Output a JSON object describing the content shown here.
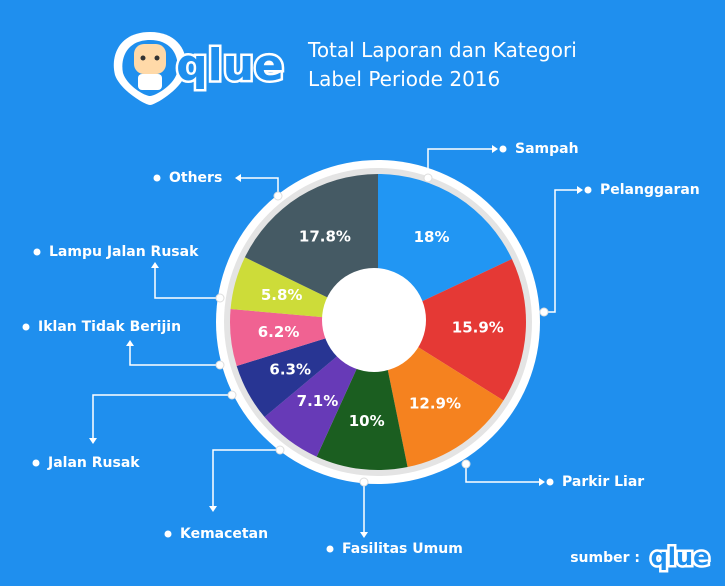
{
  "chart_data": {
    "type": "pie",
    "title": "Total Laporan dan Kategori Label Periode 2016",
    "brand": "qlue",
    "source_label": "sumber :",
    "categories": [
      "Sampah",
      "Pelanggaran",
      "Parkir Liar",
      "Fasilitas Umum",
      "Kemacetan",
      "Jalan Rusak",
      "Iklan Tidak Berijin",
      "Lampu Jalan Rusak",
      "Others"
    ],
    "values": [
      18,
      15.9,
      12.9,
      10,
      7.1,
      6.3,
      6.2,
      5.8,
      17.8
    ],
    "value_labels": [
      "18%",
      "15.9%",
      "12.9%",
      "10%",
      "7.1%",
      "6.3%",
      "6.2%",
      "5.8%",
      "17.8%"
    ],
    "colors": [
      "#2196f3",
      "#e53935",
      "#f5821f",
      "#1b5e20",
      "#673ab7",
      "#283593",
      "#f06292",
      "#cddc39",
      "#455a64"
    ]
  }
}
